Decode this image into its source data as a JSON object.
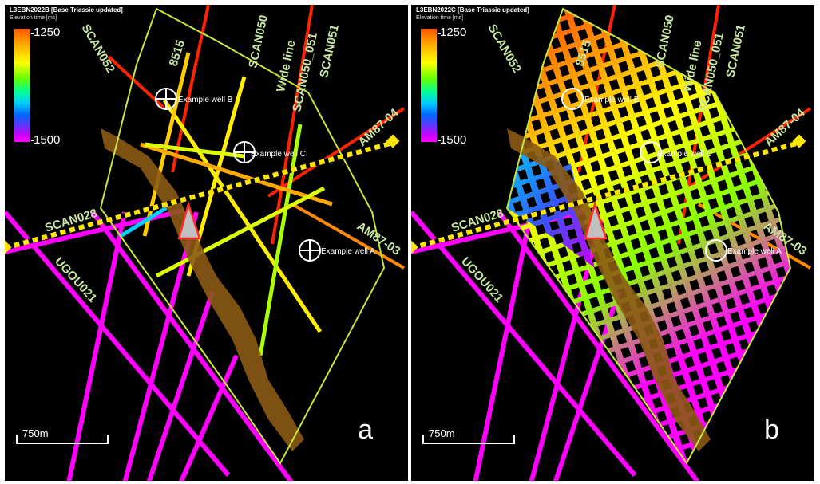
{
  "panels": [
    {
      "id": "a",
      "header_title": "L3EBN2022B [Base Triassic updated]",
      "header_subtitle": "Elevation time [ms]",
      "panel_label": "a"
    },
    {
      "id": "b",
      "header_title": "L3EBN2022C [Base Triassic updated]",
      "header_subtitle": "Elevation time [ms]",
      "panel_label": "b"
    }
  ],
  "colorbar": {
    "top_value": "1250",
    "bottom_value": "1500",
    "colors": [
      "#ff5500",
      "#ffaa00",
      "#ffff00",
      "#66ff00",
      "#00ff99",
      "#00ccff",
      "#0066ff",
      "#6633ff",
      "#cc00ff",
      "#ff00ff"
    ]
  },
  "scale_bar": {
    "label": "750m"
  },
  "seismic_lines": {
    "scan052": "SCAN052",
    "l8515": "8515",
    "scan050": "SCAN050",
    "wide_line": "Wide line",
    "scan050_051": "SCAN050_051",
    "scan051": "SCAN051",
    "am87_04": "AM87-04",
    "am87_03": "AM87-03",
    "scan028": "SCAN028",
    "ugou021": "UGOU021"
  },
  "wells": {
    "b": "Example well B",
    "c": "Example well C",
    "a": "Example well A"
  },
  "colors": {
    "background": "#000000",
    "outline": "#c8e63c",
    "route": "#8b5a14",
    "marker": "#ffe600",
    "line_magenta": "#ff00ff",
    "line_red": "#ff2200",
    "label_green": "#c8e6a0"
  }
}
